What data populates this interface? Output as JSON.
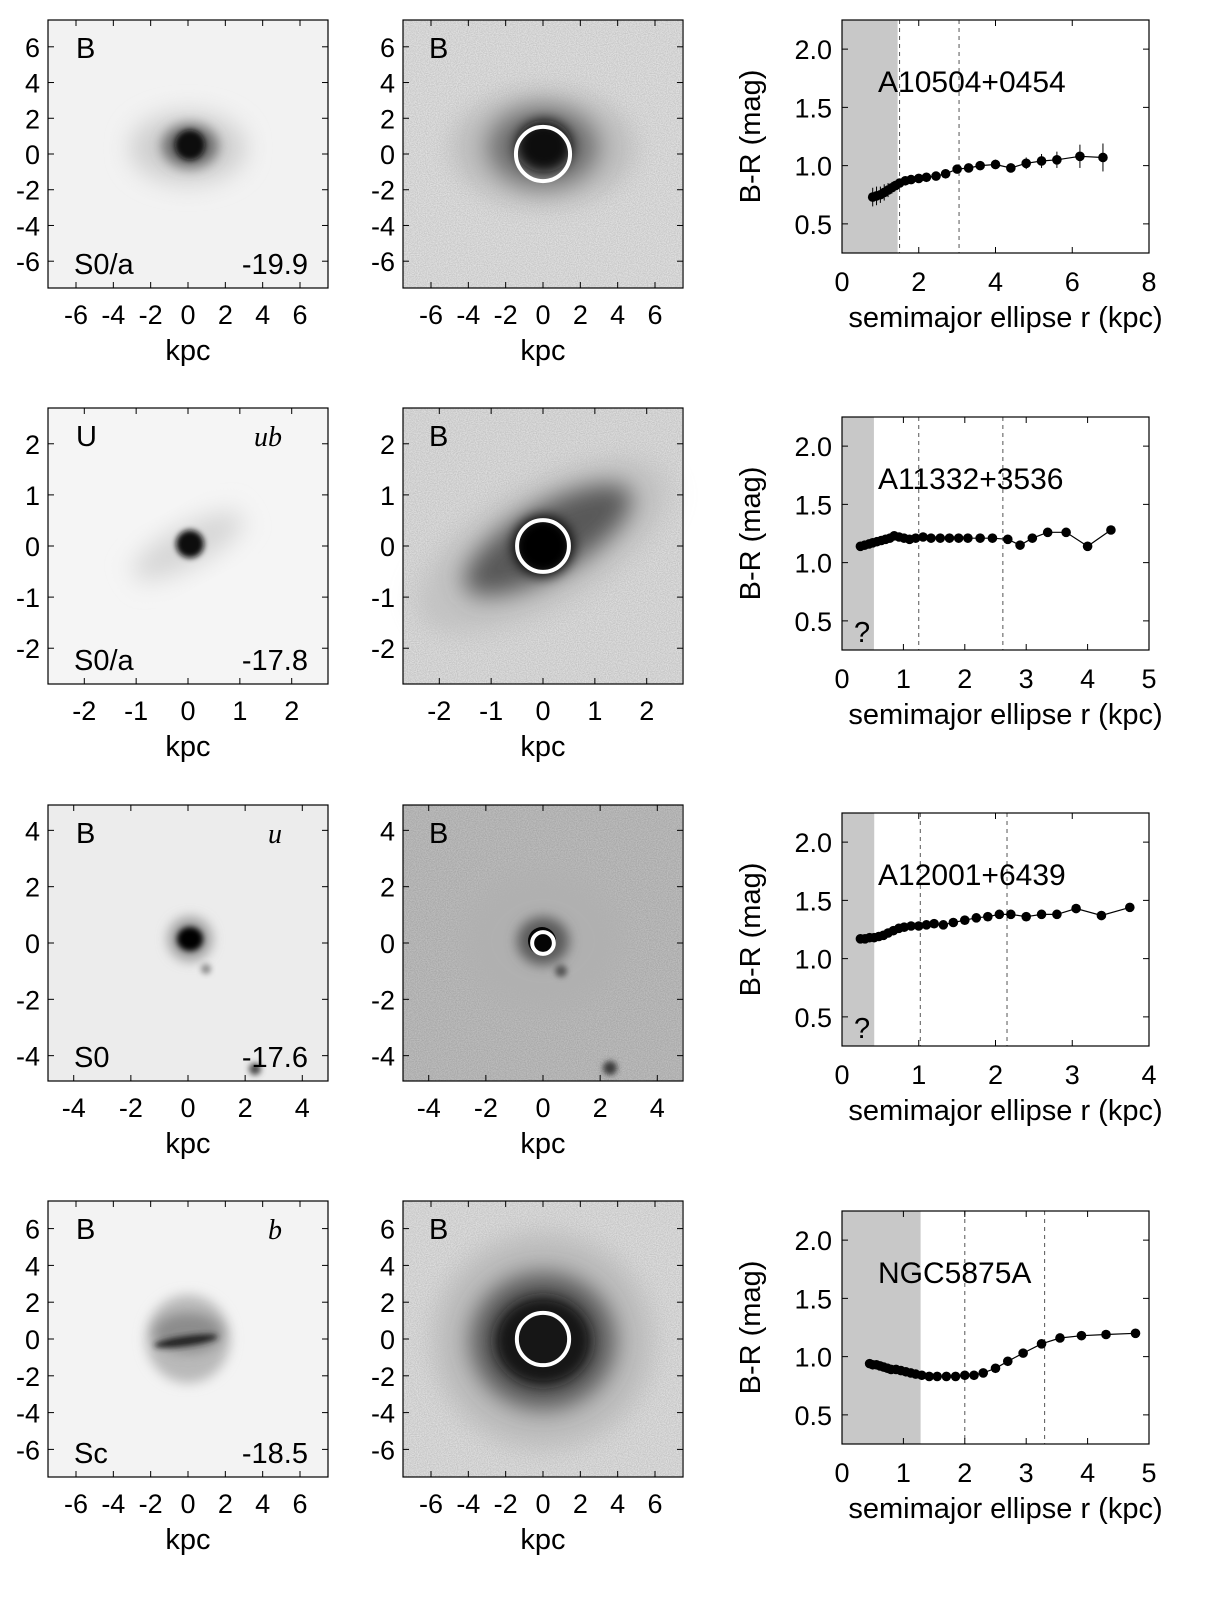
{
  "axis_labels": {
    "image_x": "kpc",
    "plot_x": "semimajor ellipse r (kpc)",
    "plot_y": "B-R (mag)"
  },
  "chart_data": [
    {
      "type": "scatter",
      "galaxy": "A10504+0454",
      "left_image": {
        "band": "B",
        "qualifier": "",
        "morph_type": "S0/a",
        "abs_mag": "-19.9"
      },
      "right_image": {
        "band": "B"
      },
      "image_extent_kpc": 7.5,
      "image_ticks": [
        "-6",
        "-4",
        "-2",
        "0",
        "2",
        "4",
        "6"
      ],
      "image_tick_values": [
        -6,
        -4,
        -2,
        0,
        2,
        4,
        6
      ],
      "circle_radius_kpc": 1.45,
      "xlim": [
        0,
        8
      ],
      "ylim": [
        0.25,
        2.25
      ],
      "x_ticks": [
        "0",
        "2",
        "4",
        "6",
        "8"
      ],
      "x_tick_values": [
        0,
        2,
        4,
        6,
        8
      ],
      "y_ticks": [
        "0.5",
        "1.0",
        "1.5",
        "2.0"
      ],
      "y_tick_values": [
        0.5,
        1.0,
        1.5,
        2.0
      ],
      "shaded_max_r": 1.45,
      "vlines": [
        1.5,
        3.05
      ],
      "question_mark": "",
      "x": [
        0.8,
        0.9,
        1.0,
        1.1,
        1.2,
        1.3,
        1.4,
        1.5,
        1.65,
        1.8,
        2.0,
        2.2,
        2.45,
        2.7,
        3.0,
        3.3,
        3.6,
        4.0,
        4.4,
        4.8,
        5.2,
        5.6,
        6.2,
        6.8
      ],
      "y": [
        0.73,
        0.74,
        0.75,
        0.77,
        0.79,
        0.81,
        0.83,
        0.85,
        0.87,
        0.88,
        0.89,
        0.9,
        0.91,
        0.93,
        0.97,
        0.98,
        1.0,
        1.01,
        0.98,
        1.02,
        1.04,
        1.05,
        1.08,
        1.07
      ],
      "err": [
        0.08,
        0.08,
        0.07,
        0.07,
        0.06,
        0.05,
        0.04,
        0.03,
        0.02,
        0.02,
        0.02,
        0.02,
        0.02,
        0.02,
        0.03,
        0.03,
        0.04,
        0.04,
        0.04,
        0.05,
        0.06,
        0.07,
        0.1,
        0.12
      ]
    },
    {
      "type": "scatter",
      "galaxy": "A11332+3536",
      "left_image": {
        "band": "U",
        "qualifier": "ub",
        "morph_type": "S0/a",
        "abs_mag": "-17.8"
      },
      "right_image": {
        "band": "B"
      },
      "image_extent_kpc": 2.7,
      "image_ticks": [
        "-2",
        "-1",
        "0",
        "1",
        "2"
      ],
      "image_tick_values": [
        -2,
        -1,
        0,
        1,
        2
      ],
      "circle_radius_kpc": 0.5,
      "xlim": [
        0,
        5
      ],
      "ylim": [
        0.25,
        2.25
      ],
      "x_ticks": [
        "0",
        "1",
        "2",
        "3",
        "4",
        "5"
      ],
      "x_tick_values": [
        0,
        1,
        2,
        3,
        4,
        5
      ],
      "y_ticks": [
        "0.5",
        "1.0",
        "1.5",
        "2.0"
      ],
      "y_tick_values": [
        0.5,
        1.0,
        1.5,
        2.0
      ],
      "shaded_max_r": 0.52,
      "vlines": [
        1.25,
        2.62
      ],
      "question_mark": "?",
      "x": [
        0.3,
        0.37,
        0.44,
        0.5,
        0.57,
        0.64,
        0.71,
        0.78,
        0.85,
        0.93,
        1.01,
        1.1,
        1.2,
        1.32,
        1.45,
        1.6,
        1.75,
        1.9,
        2.05,
        2.25,
        2.45,
        2.7,
        2.9,
        3.1,
        3.35,
        3.65,
        4.0,
        4.38
      ],
      "y": [
        1.14,
        1.15,
        1.16,
        1.17,
        1.18,
        1.19,
        1.2,
        1.21,
        1.23,
        1.22,
        1.21,
        1.2,
        1.21,
        1.22,
        1.21,
        1.21,
        1.21,
        1.21,
        1.21,
        1.21,
        1.21,
        1.2,
        1.15,
        1.21,
        1.26,
        1.26,
        1.14,
        1.28
      ]
    },
    {
      "type": "scatter",
      "galaxy": "A12001+6439",
      "left_image": {
        "band": "B",
        "qualifier": "u",
        "morph_type": "S0",
        "abs_mag": "-17.6"
      },
      "right_image": {
        "band": "B"
      },
      "image_extent_kpc": 4.9,
      "image_ticks": [
        "-4",
        "-2",
        "0",
        "2",
        "4"
      ],
      "image_tick_values": [
        -4,
        -2,
        0,
        2,
        4
      ],
      "circle_radius_kpc": 0.38,
      "xlim": [
        0,
        4
      ],
      "ylim": [
        0.25,
        2.25
      ],
      "x_ticks": [
        "0",
        "1",
        "2",
        "3",
        "4"
      ],
      "x_tick_values": [
        0,
        1,
        2,
        3,
        4
      ],
      "y_ticks": [
        "0.5",
        "1.0",
        "1.5",
        "2.0"
      ],
      "y_tick_values": [
        0.5,
        1.0,
        1.5,
        2.0
      ],
      "shaded_max_r": 0.42,
      "vlines": [
        1.02,
        2.15
      ],
      "question_mark": "?",
      "x": [
        0.24,
        0.3,
        0.36,
        0.42,
        0.48,
        0.54,
        0.6,
        0.67,
        0.74,
        0.81,
        0.9,
        1.0,
        1.1,
        1.2,
        1.32,
        1.45,
        1.6,
        1.75,
        1.9,
        2.05,
        2.2,
        2.4,
        2.6,
        2.8,
        3.05,
        3.38,
        3.75
      ],
      "y": [
        1.17,
        1.17,
        1.18,
        1.18,
        1.19,
        1.2,
        1.22,
        1.24,
        1.26,
        1.27,
        1.28,
        1.28,
        1.29,
        1.3,
        1.29,
        1.31,
        1.33,
        1.35,
        1.36,
        1.38,
        1.38,
        1.36,
        1.38,
        1.38,
        1.43,
        1.37,
        1.44
      ]
    },
    {
      "type": "scatter",
      "galaxy": "NGC5875A",
      "left_image": {
        "band": "B",
        "qualifier": "b",
        "morph_type": "Sc",
        "abs_mag": "-18.5"
      },
      "right_image": {
        "band": "B"
      },
      "image_extent_kpc": 7.5,
      "image_ticks": [
        "-6",
        "-4",
        "-2",
        "0",
        "2",
        "4",
        "6"
      ],
      "image_tick_values": [
        -6,
        -4,
        -2,
        0,
        2,
        4,
        6
      ],
      "circle_radius_kpc": 1.4,
      "xlim": [
        0,
        5
      ],
      "ylim": [
        0.25,
        2.25
      ],
      "x_ticks": [
        "0",
        "1",
        "2",
        "3",
        "4",
        "5"
      ],
      "x_tick_values": [
        0,
        1,
        2,
        3,
        4,
        5
      ],
      "y_ticks": [
        "0.5",
        "1.0",
        "1.5",
        "2.0"
      ],
      "y_tick_values": [
        0.5,
        1.0,
        1.5,
        2.0
      ],
      "shaded_max_r": 1.28,
      "vlines": [
        2.0,
        3.3
      ],
      "question_mark": "",
      "x": [
        0.45,
        0.5,
        0.56,
        0.62,
        0.68,
        0.74,
        0.8,
        0.88,
        0.96,
        1.04,
        1.12,
        1.2,
        1.3,
        1.42,
        1.55,
        1.7,
        1.85,
        2.0,
        2.15,
        2.3,
        2.5,
        2.7,
        2.95,
        3.25,
        3.55,
        3.9,
        4.3,
        4.78
      ],
      "y": [
        0.94,
        0.93,
        0.93,
        0.92,
        0.91,
        0.9,
        0.89,
        0.89,
        0.88,
        0.87,
        0.86,
        0.85,
        0.84,
        0.83,
        0.83,
        0.83,
        0.83,
        0.84,
        0.84,
        0.86,
        0.9,
        0.96,
        1.03,
        1.11,
        1.16,
        1.18,
        1.19,
        1.2
      ]
    }
  ]
}
